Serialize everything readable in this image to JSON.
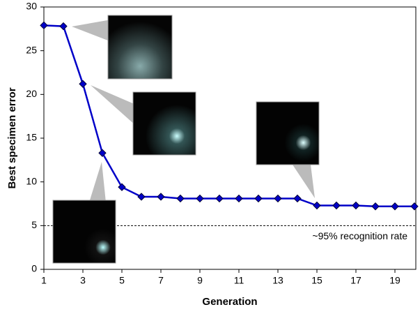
{
  "chart_data": {
    "type": "line",
    "x_label": "Generation",
    "y_label": "Best specimen error",
    "x": [
      1,
      2,
      3,
      4,
      5,
      6,
      7,
      8,
      9,
      10,
      11,
      12,
      13,
      14,
      15,
      16,
      17,
      18,
      19,
      20
    ],
    "series": [
      {
        "color": "#0000c8",
        "values": [
          27.9,
          27.8,
          21.2,
          13.3,
          9.4,
          8.3,
          8.3,
          8.1,
          8.1,
          8.1,
          8.1,
          8.1,
          8.1,
          8.1,
          7.3,
          7.3,
          7.3,
          7.2,
          7.2,
          7.2
        ]
      }
    ],
    "xlim": [
      1,
      20
    ],
    "xticks": [
      1,
      3,
      5,
      7,
      9,
      11,
      13,
      15,
      17,
      19
    ],
    "ylim": [
      0,
      30
    ],
    "yticks": [
      0,
      5,
      10,
      15,
      20,
      25,
      30
    ],
    "reference_line": {
      "value": 5,
      "label": "~95% recognition rate"
    }
  }
}
